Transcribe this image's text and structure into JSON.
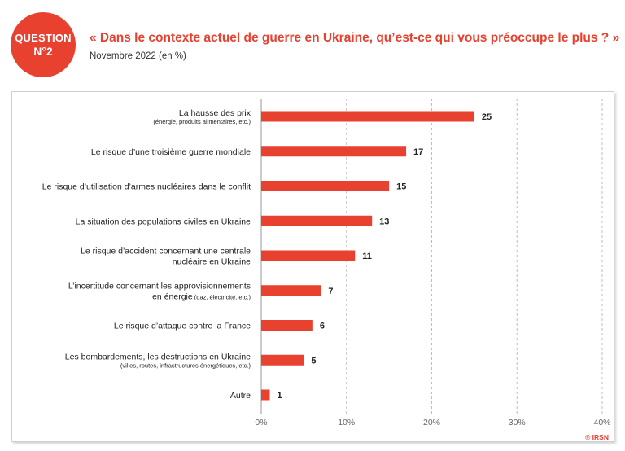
{
  "badge": {
    "line1": "QUESTION",
    "line2": "N°2"
  },
  "header": {
    "title": "« Dans le contexte actuel de guerre en Ukraine, qu’est-ce qui vous préoccupe le plus ? »",
    "subtitle": "Novembre 2022 (en %)"
  },
  "credit": "© IRSN",
  "colors": {
    "accent": "#e8412f",
    "bar": "#e8412f",
    "grid": "#bdbdbd"
  },
  "chart_data": {
    "type": "bar",
    "orientation": "horizontal",
    "title": "« Dans le contexte actuel de guerre en Ukraine, qu’est-ce qui vous préoccupe le plus ? »",
    "subtitle": "Novembre 2022 (en %)",
    "xlabel": "",
    "ylabel": "",
    "xlim": [
      0,
      40
    ],
    "ticks": [
      "0%",
      "10%",
      "20%",
      "30%",
      "40%"
    ],
    "tick_values": [
      0,
      10,
      20,
      30,
      40
    ],
    "grid": "vertical dashed",
    "categories": [
      {
        "main": [
          "La hausse des prix"
        ],
        "sub": "(énergie, produits alimentaires, etc.)"
      },
      {
        "main": [
          "Le risque d’une troisième guerre mondiale"
        ],
        "sub": ""
      },
      {
        "main": [
          "Le risque d’utilisation d’armes nucléaires dans le conflit"
        ],
        "sub": ""
      },
      {
        "main": [
          "La situation des populations civiles en Ukraine"
        ],
        "sub": ""
      },
      {
        "main": [
          "Le risque d’accident concernant une centrale",
          "nucléaire en Ukraine"
        ],
        "sub": ""
      },
      {
        "main": [
          "L’incertitude concernant les approvisionnements",
          "en énergie"
        ],
        "sub": "(gaz, électricité, etc.)",
        "sub_inline": true
      },
      {
        "main": [
          "Le risque d’attaque contre la France"
        ],
        "sub": ""
      },
      {
        "main": [
          "Les bombardements, les destructions en Ukraine"
        ],
        "sub": "(villes, routes, infrastructures énergétiques, etc.)"
      },
      {
        "main": [
          "Autre"
        ],
        "sub": ""
      }
    ],
    "values": [
      25,
      17,
      15,
      13,
      11,
      7,
      6,
      5,
      1
    ]
  }
}
